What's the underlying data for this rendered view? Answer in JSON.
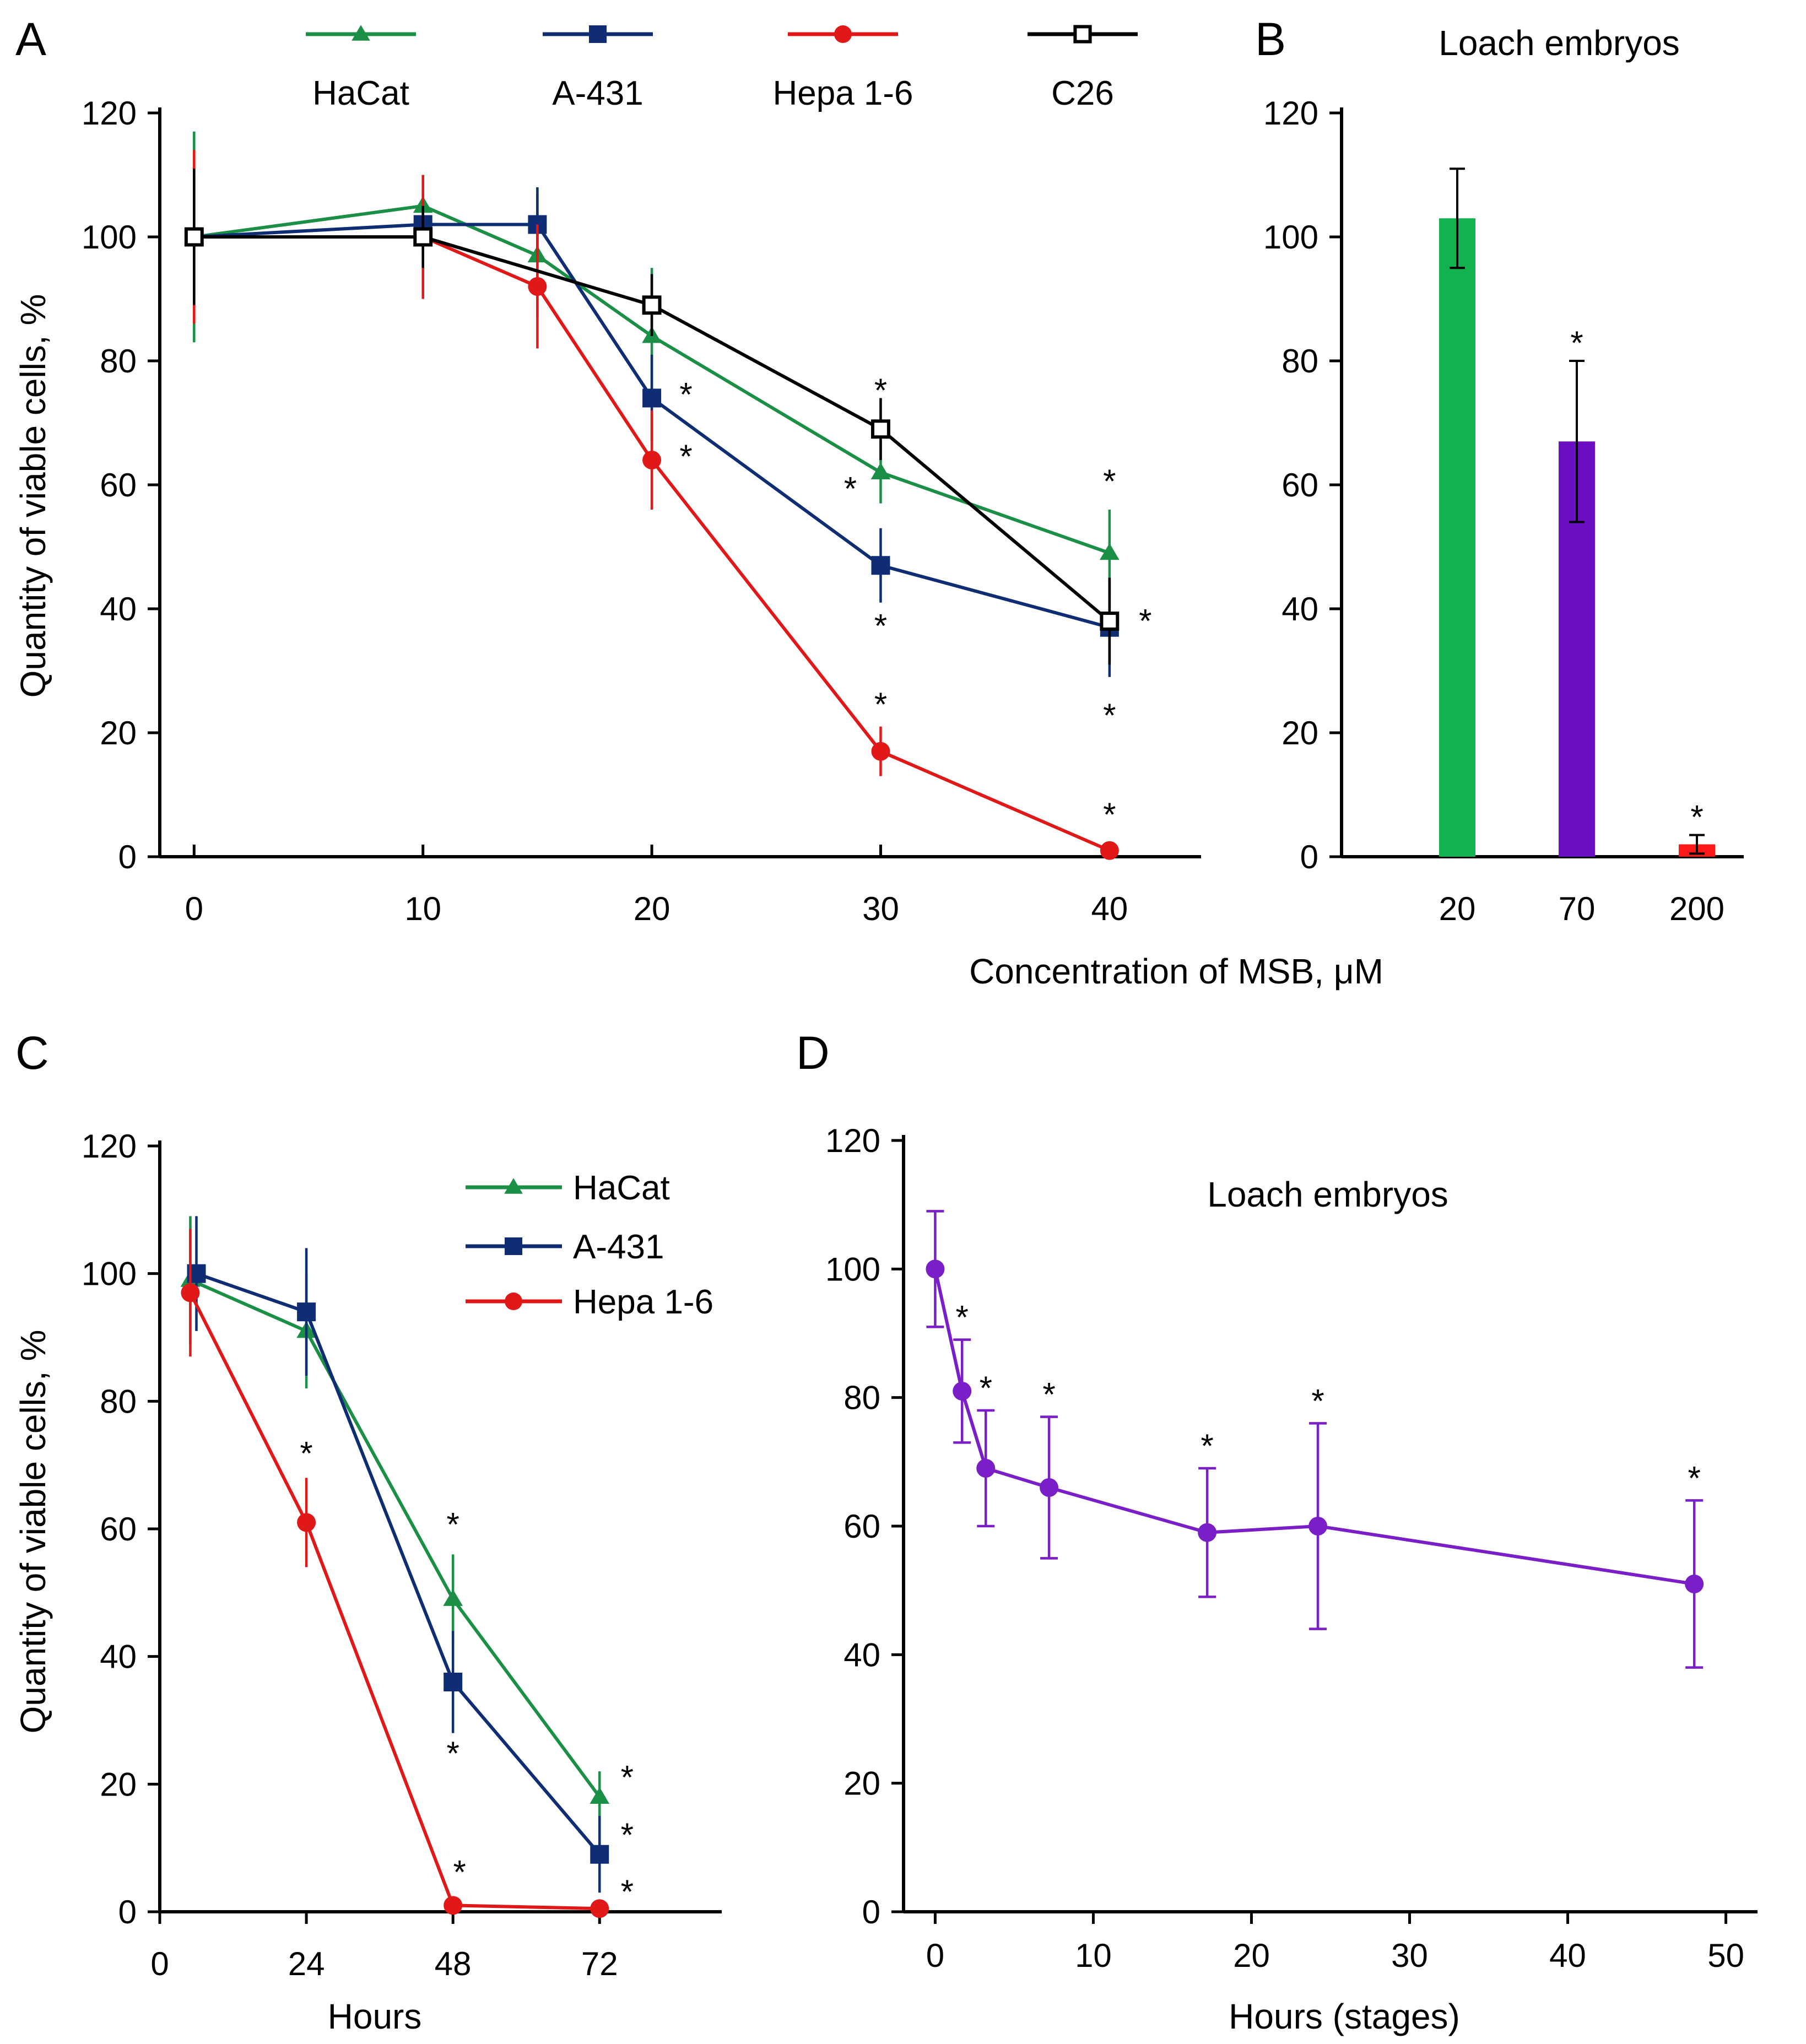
{
  "chart_data": [
    {
      "panel": "A",
      "type": "line",
      "title": "",
      "xlabel": "Concentration of MSB, μM",
      "ylabel": "Quantity of viable cells, %",
      "x_ticks": [
        0,
        10,
        20,
        30,
        40
      ],
      "y_ticks": [
        0,
        20,
        40,
        60,
        80,
        100,
        120
      ],
      "xlim": [
        -1.5,
        44
      ],
      "ylim": [
        0,
        120
      ],
      "legend": "top",
      "series": [
        {
          "name": "HaCat",
          "color": "#1a8f45",
          "marker": "triangle",
          "x": [
            0,
            10,
            15,
            20,
            30,
            40
          ],
          "y": [
            100,
            105,
            97,
            84,
            62,
            49
          ],
          "err": [
            17,
            5,
            10,
            11,
            5,
            7
          ],
          "sig": [
            false,
            false,
            false,
            false,
            true,
            true
          ]
        },
        {
          "name": "A-431",
          "color": "#0e2d73",
          "marker": "square",
          "x": [
            0,
            10,
            15,
            20,
            30,
            40
          ],
          "y": [
            100,
            102,
            102,
            74,
            47,
            37
          ],
          "err": [
            10,
            5,
            6,
            7,
            6,
            8
          ],
          "sig": [
            false,
            false,
            false,
            true,
            true,
            true
          ]
        },
        {
          "name": "Hepa 1-6",
          "color": "#e01818",
          "marker": "circle",
          "x": [
            0,
            10,
            15,
            20,
            30,
            40
          ],
          "y": [
            100,
            100,
            92,
            64,
            17,
            1
          ],
          "err": [
            14,
            10,
            10,
            8,
            4,
            1
          ],
          "sig": [
            false,
            false,
            false,
            true,
            true,
            true
          ]
        },
        {
          "name": "C26",
          "color": "#000000",
          "marker": "open-square",
          "x": [
            0,
            10,
            20,
            30,
            40
          ],
          "y": [
            100,
            100,
            89,
            69,
            38
          ],
          "err": [
            11,
            5,
            5,
            5,
            7
          ],
          "sig": [
            false,
            false,
            false,
            true,
            true
          ]
        }
      ],
      "significance_mark": "*"
    },
    {
      "panel": "B",
      "type": "bar",
      "title": "Loach embryos",
      "xlabel": "Concentration of MSB, μM",
      "ylabel": "",
      "categories": [
        "20",
        "70",
        "200"
      ],
      "values": [
        103,
        67,
        2
      ],
      "errors": [
        8,
        13,
        1.5
      ],
      "colors": [
        "#11b24f",
        "#6a0fc4",
        "#ff1a1a"
      ],
      "sig": [
        false,
        true,
        true
      ],
      "y_ticks": [
        0,
        20,
        40,
        60,
        80,
        100,
        120
      ],
      "ylim": [
        0,
        120
      ]
    },
    {
      "panel": "C",
      "type": "line",
      "title": "",
      "xlabel": "Hours",
      "ylabel": "Quantity of viable cells, %",
      "x_ticks": [
        0,
        24,
        48,
        72
      ],
      "y_ticks": [
        0,
        20,
        40,
        60,
        80,
        100,
        120
      ],
      "xlim": [
        0,
        92
      ],
      "ylim": [
        0,
        120
      ],
      "legend": "top-right",
      "series": [
        {
          "name": "HaCat",
          "color": "#1a8f45",
          "marker": "triangle",
          "x": [
            5,
            24,
            48,
            72
          ],
          "y": [
            99,
            91,
            49,
            18
          ],
          "err": [
            10,
            9,
            7,
            4
          ],
          "sig": [
            false,
            false,
            true,
            true
          ]
        },
        {
          "name": "A-431",
          "color": "#0e2d73",
          "marker": "square",
          "x": [
            6,
            24,
            48,
            72
          ],
          "y": [
            100,
            94,
            36,
            9
          ],
          "err": [
            9,
            10,
            8,
            6
          ],
          "sig": [
            false,
            false,
            true,
            true
          ]
        },
        {
          "name": "Hepa 1-6",
          "color": "#e01818",
          "marker": "circle",
          "x": [
            5,
            24,
            48,
            72
          ],
          "y": [
            97,
            61,
            1,
            0.5
          ],
          "err": [
            10,
            7,
            1,
            0.5
          ],
          "sig": [
            false,
            true,
            true,
            true
          ]
        }
      ],
      "significance_mark": "*"
    },
    {
      "panel": "D",
      "type": "line",
      "title": "Loach embryos",
      "xlabel": "Hours (stages)",
      "ylabel": "",
      "x_ticks": [
        0,
        10,
        20,
        30,
        40,
        50
      ],
      "y_ticks": [
        0,
        20,
        40,
        60,
        80,
        100,
        120
      ],
      "xlim": [
        -2,
        52
      ],
      "ylim": [
        0,
        120
      ],
      "series": [
        {
          "name": "Loach embryos",
          "color": "#7a1ec8",
          "marker": "circle",
          "x": [
            0,
            1.7,
            3.2,
            7.2,
            17.2,
            24.2,
            48
          ],
          "y": [
            100,
            81,
            69,
            66,
            59,
            60,
            51
          ],
          "err": [
            9,
            8,
            9,
            11,
            10,
            16,
            13
          ],
          "sig": [
            false,
            true,
            true,
            true,
            true,
            true,
            true
          ]
        }
      ],
      "significance_mark": "*"
    }
  ]
}
